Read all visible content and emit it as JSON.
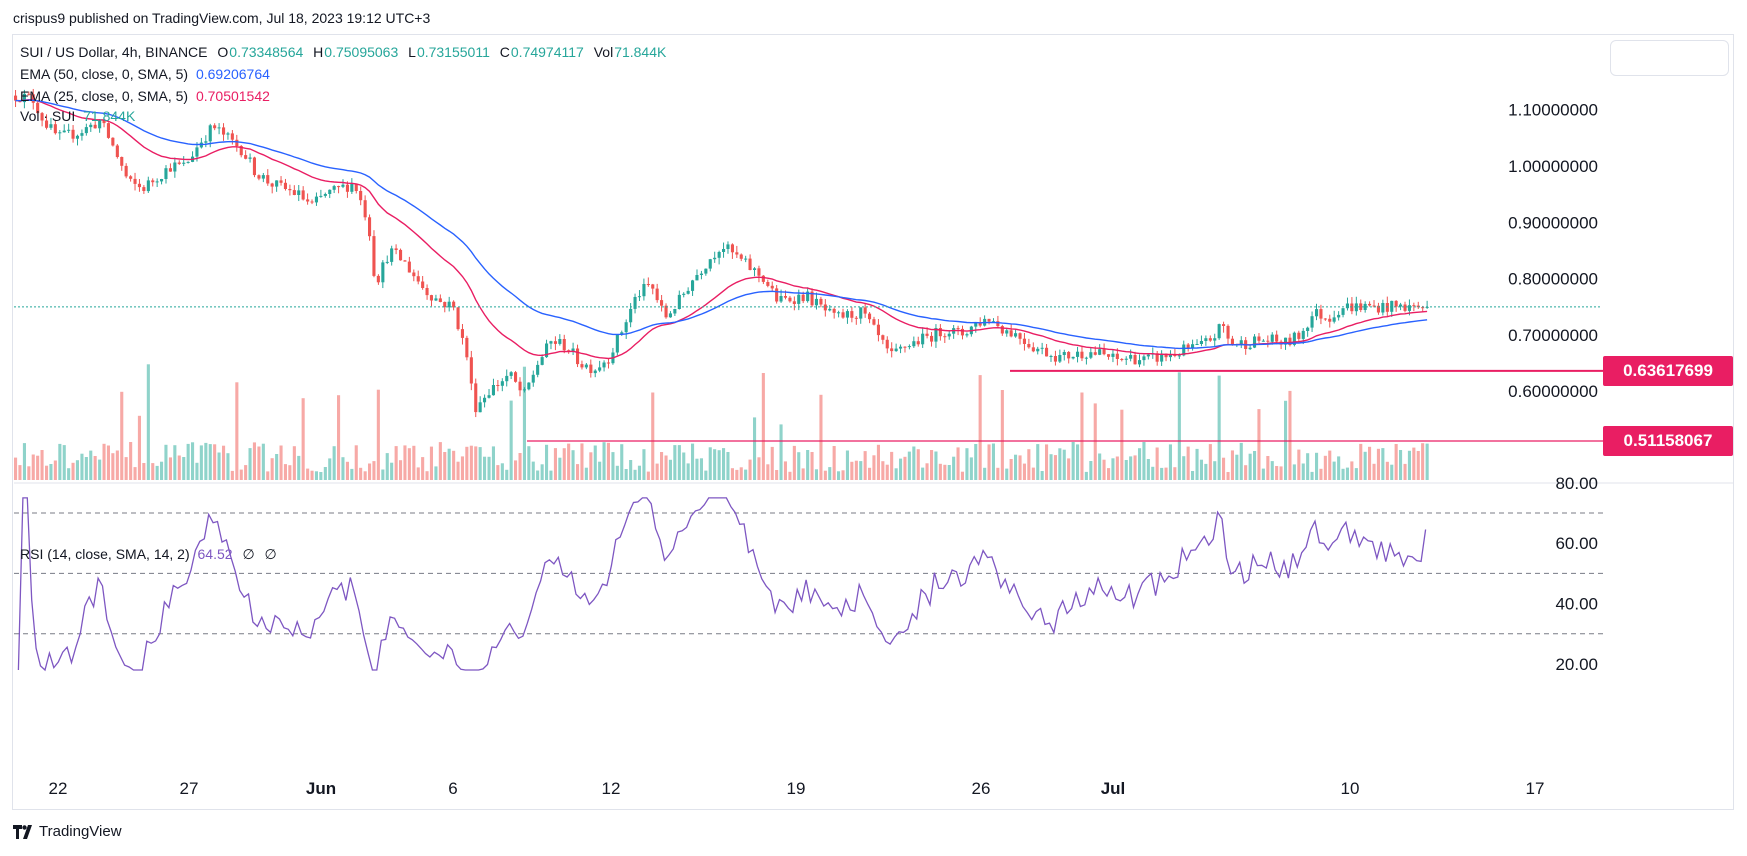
{
  "banner": "crispus9 published on TradingView.com, Jul 18, 2023 19:12 UTC+3",
  "legend": {
    "symbol": "SUI / US Dollar, 4h, BINANCE",
    "o_label": "O",
    "o": "0.73348564",
    "h_label": "H",
    "h": "0.75095063",
    "l_label": "L",
    "l": "0.73155011",
    "c_label": "C",
    "c": "0.74974117",
    "vol_label": "Vol",
    "vol": "71.844K",
    "ema50": "EMA (50, close, 0, SMA, 5)",
    "ema50_value": "0.69206764",
    "ema25": "EMA (25, close, 0, SMA, 5)",
    "ema25_value": "0.70501542",
    "volume": "Vol · SUI",
    "volume_value": "71.844K",
    "rsi": "RSI (14, close, SMA, 14, 2)",
    "rsi_value": "64.52",
    "rsi_na1": "∅",
    "rsi_na2": "∅"
  },
  "footer": "TradingView",
  "colors": {
    "up": "#26a69a",
    "down": "#ef5350",
    "ema50": "#2962ff",
    "ema25": "#e91e63",
    "rsi": "#7e57c2",
    "levels": "#e91e63",
    "vol_up": "#8fd3ca",
    "vol_down": "#f7a9a6"
  },
  "chart_data": {
    "type": "candlestick",
    "price_axis": [
      "1.10000000",
      "1.00000000",
      "0.90000000",
      "0.80000000",
      "0.70000000",
      "0.60000000"
    ],
    "rsi_axis": [
      "80.00",
      "60.00",
      "40.00",
      "20.00"
    ],
    "x_labels": [
      "22",
      "27",
      "Jun",
      "6",
      "12",
      "19",
      "26",
      "Jul",
      "10",
      "17"
    ],
    "levels": [
      {
        "label": "0.63617699",
        "value": 0.63617699
      },
      {
        "label": "0.51158067",
        "value": 0.51158067
      }
    ],
    "last_close": 0.74974117,
    "ema50_last": 0.69206764,
    "ema25_last": 0.70501542,
    "rsi_last": 64.52,
    "rsi_band": [
      30,
      50,
      70
    ],
    "price_path": [
      [
        0,
        1.125
      ],
      [
        0.012,
        1.12
      ],
      [
        0.02,
        1.08
      ],
      [
        0.03,
        1.05
      ],
      [
        0.045,
        1.06
      ],
      [
        0.06,
        1.08
      ],
      [
        0.07,
        1.03
      ],
      [
        0.08,
        0.97
      ],
      [
        0.09,
        0.96
      ],
      [
        0.1,
        0.98
      ],
      [
        0.11,
        1.0
      ],
      [
        0.12,
        1.0
      ],
      [
        0.13,
        1.04
      ],
      [
        0.14,
        1.07
      ],
      [
        0.15,
        1.05
      ],
      [
        0.16,
        1.03
      ],
      [
        0.17,
        0.99
      ],
      [
        0.18,
        0.97
      ],
      [
        0.2,
        0.95
      ],
      [
        0.21,
        0.93
      ],
      [
        0.22,
        0.95
      ],
      [
        0.23,
        0.96
      ],
      [
        0.24,
        0.97
      ],
      [
        0.25,
        0.9
      ],
      [
        0.255,
        0.79
      ],
      [
        0.265,
        0.85
      ],
      [
        0.275,
        0.83
      ],
      [
        0.29,
        0.78
      ],
      [
        0.3,
        0.76
      ],
      [
        0.31,
        0.75
      ],
      [
        0.32,
        0.66
      ],
      [
        0.325,
        0.57
      ],
      [
        0.335,
        0.6
      ],
      [
        0.35,
        0.63
      ],
      [
        0.36,
        0.59
      ],
      [
        0.37,
        0.65
      ],
      [
        0.38,
        0.69
      ],
      [
        0.39,
        0.68
      ],
      [
        0.4,
        0.65
      ],
      [
        0.41,
        0.64
      ],
      [
        0.42,
        0.66
      ],
      [
        0.43,
        0.71
      ],
      [
        0.44,
        0.77
      ],
      [
        0.45,
        0.79
      ],
      [
        0.46,
        0.73
      ],
      [
        0.47,
        0.76
      ],
      [
        0.48,
        0.8
      ],
      [
        0.49,
        0.83
      ],
      [
        0.5,
        0.86
      ],
      [
        0.51,
        0.84
      ],
      [
        0.52,
        0.82
      ],
      [
        0.53,
        0.8
      ],
      [
        0.54,
        0.76
      ],
      [
        0.56,
        0.77
      ],
      [
        0.58,
        0.73
      ],
      [
        0.6,
        0.74
      ],
      [
        0.61,
        0.7
      ],
      [
        0.62,
        0.66
      ],
      [
        0.63,
        0.68
      ],
      [
        0.64,
        0.69
      ],
      [
        0.65,
        0.7
      ],
      [
        0.66,
        0.71
      ],
      [
        0.67,
        0.7
      ],
      [
        0.68,
        0.72
      ],
      [
        0.69,
        0.73
      ],
      [
        0.7,
        0.71
      ],
      [
        0.71,
        0.7
      ],
      [
        0.72,
        0.68
      ],
      [
        0.73,
        0.67
      ],
      [
        0.74,
        0.66
      ],
      [
        0.75,
        0.665
      ],
      [
        0.76,
        0.67
      ],
      [
        0.77,
        0.665
      ],
      [
        0.78,
        0.655
      ],
      [
        0.79,
        0.66
      ],
      [
        0.8,
        0.655
      ],
      [
        0.81,
        0.66
      ],
      [
        0.82,
        0.665
      ],
      [
        0.83,
        0.675
      ],
      [
        0.84,
        0.68
      ],
      [
        0.85,
        0.7
      ],
      [
        0.855,
        0.72
      ],
      [
        0.86,
        0.685
      ],
      [
        0.87,
        0.685
      ],
      [
        0.88,
        0.69
      ],
      [
        0.89,
        0.69
      ],
      [
        0.9,
        0.685
      ],
      [
        0.91,
        0.7
      ],
      [
        0.92,
        0.74
      ],
      [
        0.93,
        0.73
      ],
      [
        0.94,
        0.75
      ]
    ]
  }
}
